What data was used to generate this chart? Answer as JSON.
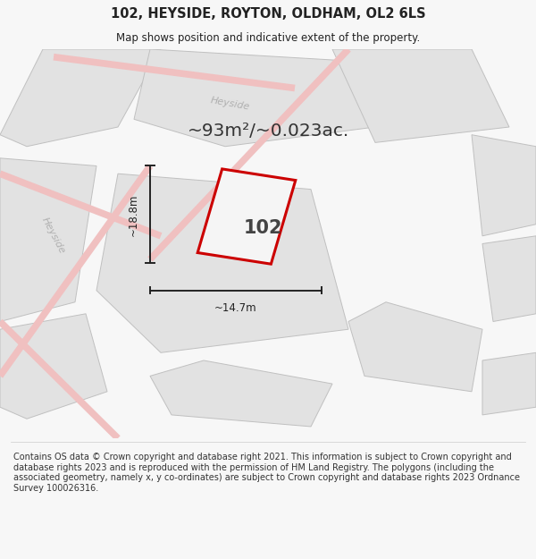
{
  "title": "102, HEYSIDE, ROYTON, OLDHAM, OL2 6LS",
  "subtitle": "Map shows position and indicative extent of the property.",
  "area_text": "~93m²/~0.023ac.",
  "property_number": "102",
  "dim_width": "~14.7m",
  "dim_height": "~18.8m",
  "footer": "Contains OS data © Crown copyright and database right 2021. This information is subject to Crown copyright and database rights 2023 and is reproduced with the permission of HM Land Registry. The polygons (including the associated geometry, namely x, y co-ordinates) are subject to Crown copyright and database rights 2023 Ordnance Survey 100026316.",
  "bg_color": "#f7f7f7",
  "map_bg": "#ffffff",
  "road_color": "#f0c0c0",
  "parcel_fill": "#e2e2e2",
  "parcel_edge": "#c0c0c0",
  "property_fill": "#f5f5f5",
  "property_edge": "#cc0000",
  "road_label_color": "#b0b0b0",
  "dim_color": "#222222",
  "title_color": "#222222",
  "footer_color": "#333333"
}
